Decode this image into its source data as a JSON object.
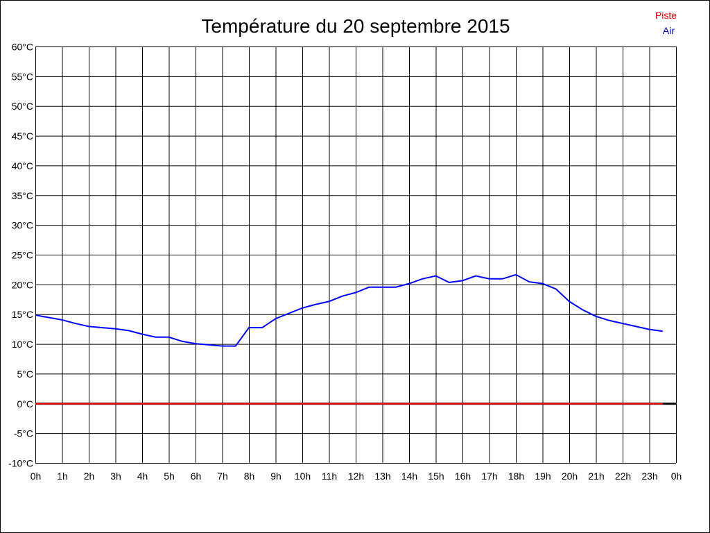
{
  "chart_data": {
    "type": "line",
    "title": "Température du 20 septembre 2015",
    "xlabel": "",
    "ylabel": "",
    "ylim": [
      -10,
      60
    ],
    "xlim": [
      0,
      24
    ],
    "grid": true,
    "legend_position": "top-right",
    "y_ticks": [
      "60°C",
      "55°C",
      "50°C",
      "45°C",
      "40°C",
      "35°C",
      "30°C",
      "25°C",
      "20°C",
      "15°C",
      "10°C",
      "5°C",
      "0°C",
      "-5°C",
      "-10°C"
    ],
    "y_tick_values": [
      60,
      55,
      50,
      45,
      40,
      35,
      30,
      25,
      20,
      15,
      10,
      5,
      0,
      -5,
      -10
    ],
    "x_ticks": [
      "0h",
      "1h",
      "2h",
      "3h",
      "4h",
      "5h",
      "6h",
      "7h",
      "8h",
      "9h",
      "10h",
      "11h",
      "12h",
      "13h",
      "14h",
      "15h",
      "16h",
      "17h",
      "18h",
      "19h",
      "20h",
      "21h",
      "22h",
      "23h",
      "0h"
    ],
    "x": [
      0,
      0.5,
      1,
      1.5,
      2,
      2.5,
      3,
      3.5,
      4,
      4.5,
      5,
      5.5,
      6,
      6.5,
      7,
      7.5,
      8,
      8.5,
      9,
      9.5,
      10,
      10.5,
      11,
      11.5,
      12,
      12.5,
      13,
      13.5,
      14,
      14.5,
      15,
      15.5,
      16,
      16.5,
      17,
      17.5,
      18,
      18.5,
      19,
      19.5,
      20,
      20.5,
      21,
      21.5,
      22,
      22.5,
      23,
      23.5
    ],
    "series": [
      {
        "name": "Piste",
        "color": "#ff0000",
        "values": [
          0,
          0,
          0,
          0,
          0,
          0,
          0,
          0,
          0,
          0,
          0,
          0,
          0,
          0,
          0,
          0,
          0,
          0,
          0,
          0,
          0,
          0,
          0,
          0,
          0,
          0,
          0,
          0,
          0,
          0,
          0,
          0,
          0,
          0,
          0,
          0,
          0,
          0,
          0,
          0,
          0,
          0,
          0,
          0,
          0,
          0,
          0,
          0
        ]
      },
      {
        "name": "Air",
        "color": "#0000ff",
        "values": [
          14.9,
          14.5,
          14.1,
          13.5,
          13.0,
          12.8,
          12.6,
          12.3,
          11.7,
          11.2,
          11.2,
          10.5,
          10.1,
          9.9,
          9.7,
          9.7,
          12.8,
          12.8,
          14.3,
          15.2,
          16.1,
          16.7,
          17.2,
          18.1,
          18.7,
          19.6,
          19.6,
          19.6,
          20.2,
          21.0,
          21.5,
          20.4,
          20.7,
          21.5,
          21.0,
          21.0,
          21.7,
          20.5,
          20.2,
          19.3,
          17.2,
          15.8,
          14.7,
          14.0,
          13.5,
          13.0,
          12.5,
          12.2
        ]
      }
    ]
  }
}
